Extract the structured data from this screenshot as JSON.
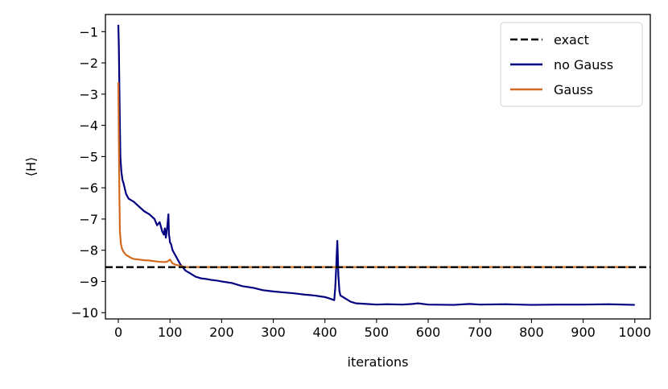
{
  "chart_data": {
    "type": "line",
    "xlabel": "iterations",
    "ylabel": "⟨H⟩",
    "xlim": [
      -25,
      1030
    ],
    "ylim": [
      -10.2,
      -0.45
    ],
    "xticks": [
      0,
      100,
      200,
      300,
      400,
      500,
      600,
      700,
      800,
      900,
      1000
    ],
    "xtick_labels": [
      "0",
      "100",
      "200",
      "300",
      "400",
      "500",
      "600",
      "700",
      "800",
      "900",
      "1000"
    ],
    "yticks": [
      -1,
      -2,
      -3,
      -4,
      -5,
      -6,
      -7,
      -8,
      -9,
      -10
    ],
    "ytick_labels": [
      "−1",
      "−2",
      "−3",
      "−4",
      "−5",
      "−6",
      "−7",
      "−8",
      "−9",
      "−10"
    ],
    "grid": false,
    "legend": {
      "position": "top-right",
      "entries": [
        "exact",
        "no Gauss",
        "Gauss"
      ]
    },
    "series": [
      {
        "name": "exact",
        "style": "dashed",
        "color": "#000000",
        "x": [
          -25,
          1030
        ],
        "y": [
          -8.54,
          -8.54
        ]
      },
      {
        "name": "no Gauss",
        "style": "solid",
        "color": "#000080",
        "x": [
          0,
          1,
          2,
          3,
          4,
          6,
          8,
          10,
          15,
          20,
          30,
          40,
          50,
          60,
          70,
          75,
          80,
          85,
          88,
          90,
          92,
          95,
          97,
          98,
          99,
          100,
          102,
          105,
          110,
          115,
          120,
          125,
          130,
          140,
          150,
          160,
          170,
          180,
          190,
          200,
          220,
          240,
          260,
          280,
          300,
          320,
          340,
          360,
          380,
          400,
          410,
          418,
          420,
          422,
          424,
          425,
          426,
          428,
          430,
          435,
          440,
          450,
          460,
          480,
          500,
          520,
          550,
          570,
          580,
          600,
          650,
          680,
          700,
          750,
          800,
          850,
          900,
          950,
          1000
        ],
        "y": [
          -0.78,
          -1.5,
          -2.8,
          -4.0,
          -5.05,
          -5.5,
          -5.75,
          -5.85,
          -6.2,
          -6.35,
          -6.45,
          -6.6,
          -6.75,
          -6.85,
          -7.0,
          -7.2,
          -7.1,
          -7.4,
          -7.5,
          -7.3,
          -7.6,
          -7.2,
          -6.85,
          -7.5,
          -7.6,
          -7.75,
          -7.8,
          -8.0,
          -8.15,
          -8.3,
          -8.45,
          -8.55,
          -8.65,
          -8.75,
          -8.85,
          -8.9,
          -8.92,
          -8.95,
          -8.97,
          -9.0,
          -9.05,
          -9.15,
          -9.2,
          -9.28,
          -9.32,
          -9.35,
          -9.38,
          -9.42,
          -9.45,
          -9.5,
          -9.55,
          -9.6,
          -9.2,
          -8.5,
          -7.7,
          -8.2,
          -8.8,
          -9.3,
          -9.45,
          -9.5,
          -9.55,
          -9.65,
          -9.7,
          -9.72,
          -9.74,
          -9.73,
          -9.74,
          -9.72,
          -9.7,
          -9.74,
          -9.75,
          -9.72,
          -9.74,
          -9.73,
          -9.75,
          -9.74,
          -9.74,
          -9.73,
          -9.75
        ]
      },
      {
        "name": "Gauss",
        "style": "solid",
        "color": "#d2691e",
        "x": [
          0,
          1,
          2,
          3,
          4,
          5,
          7,
          10,
          15,
          20,
          25,
          30,
          40,
          50,
          60,
          70,
          80,
          90,
          95,
          100,
          105,
          110,
          115,
          120,
          125,
          130,
          200,
          300,
          400,
          500,
          600,
          700,
          800,
          900,
          1000
        ],
        "y": [
          -2.62,
          -4.5,
          -6.2,
          -7.4,
          -7.6,
          -7.8,
          -7.95,
          -8.05,
          -8.15,
          -8.2,
          -8.25,
          -8.28,
          -8.3,
          -8.32,
          -8.33,
          -8.35,
          -8.37,
          -8.38,
          -8.36,
          -8.3,
          -8.42,
          -8.46,
          -8.48,
          -8.5,
          -8.52,
          -8.54,
          -8.54,
          -8.54,
          -8.54,
          -8.54,
          -8.54,
          -8.54,
          -8.54,
          -8.54,
          -8.54
        ]
      }
    ]
  }
}
